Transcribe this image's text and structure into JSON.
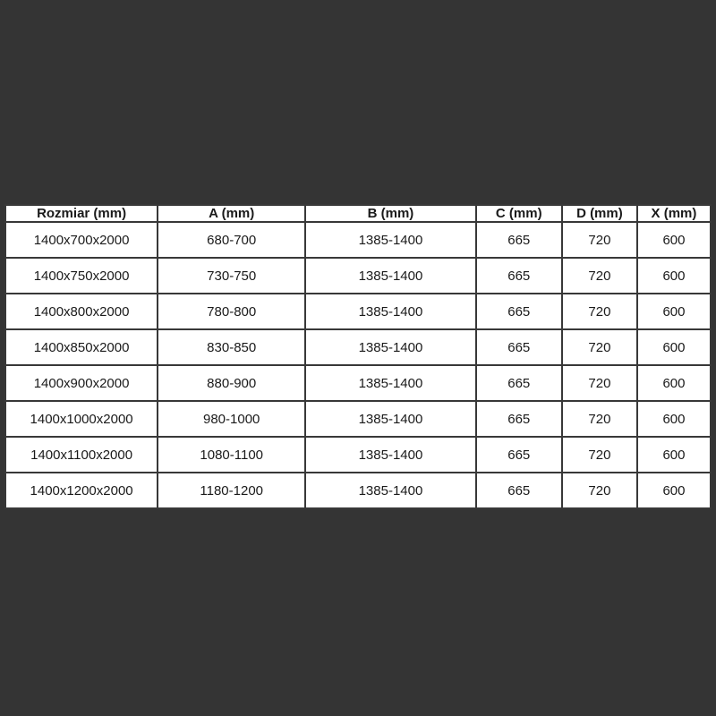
{
  "background_color": "#343434",
  "table": {
    "columns": [
      "Rozmiar (mm)",
      "A (mm)",
      "B (mm)",
      "C (mm)",
      "D (mm)",
      "X (mm)"
    ],
    "rows": [
      [
        "1400x700x2000",
        "680-700",
        "1385-1400",
        "665",
        "720",
        "600"
      ],
      [
        "1400x750x2000",
        "730-750",
        "1385-1400",
        "665",
        "720",
        "600"
      ],
      [
        "1400x800x2000",
        "780-800",
        "1385-1400",
        "665",
        "720",
        "600"
      ],
      [
        "1400x850x2000",
        "830-850",
        "1385-1400",
        "665",
        "720",
        "600"
      ],
      [
        "1400x900x2000",
        "880-900",
        "1385-1400",
        "665",
        "720",
        "600"
      ],
      [
        "1400x1000x2000",
        "980-1000",
        "1385-1400",
        "665",
        "720",
        "600"
      ],
      [
        "1400x1100x2000",
        "1080-1100",
        "1385-1400",
        "665",
        "720",
        "600"
      ],
      [
        "1400x1200x2000",
        "1180-1200",
        "1385-1400",
        "665",
        "720",
        "600"
      ]
    ]
  }
}
